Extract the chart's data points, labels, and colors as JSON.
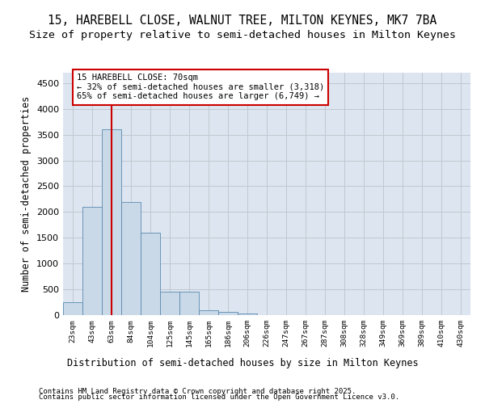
{
  "title1": "15, HAREBELL CLOSE, WALNUT TREE, MILTON KEYNES, MK7 7BA",
  "title2": "Size of property relative to semi-detached houses in Milton Keynes",
  "xlabel": "Distribution of semi-detached houses by size in Milton Keynes",
  "ylabel": "Number of semi-detached properties",
  "footer_line1": "Contains HM Land Registry data © Crown copyright and database right 2025.",
  "footer_line2": "Contains public sector information licensed under the Open Government Licence v3.0.",
  "bin_labels": [
    "23sqm",
    "43sqm",
    "63sqm",
    "84sqm",
    "104sqm",
    "125sqm",
    "145sqm",
    "165sqm",
    "186sqm",
    "206sqm",
    "226sqm",
    "247sqm",
    "267sqm",
    "287sqm",
    "308sqm",
    "328sqm",
    "349sqm",
    "369sqm",
    "389sqm",
    "410sqm",
    "430sqm"
  ],
  "bar_values": [
    250,
    2100,
    3600,
    2200,
    1600,
    450,
    450,
    100,
    60,
    30,
    5,
    0,
    0,
    0,
    0,
    0,
    0,
    0,
    0,
    0,
    0
  ],
  "bar_color": "#c9d9e8",
  "bar_edge_color": "#5a8ab0",
  "grid_color": "#c0c8d0",
  "background_color": "#dde6f0",
  "red_line_x": 2,
  "annotation_line1": "15 HAREBELL CLOSE: 70sqm",
  "annotation_line2": "← 32% of semi-detached houses are smaller (3,318)",
  "annotation_line3": "65% of semi-detached houses are larger (6,749) →",
  "ylim": [
    0,
    4700
  ],
  "yticks": [
    0,
    500,
    1000,
    1500,
    2000,
    2500,
    3000,
    3500,
    4000,
    4500
  ]
}
